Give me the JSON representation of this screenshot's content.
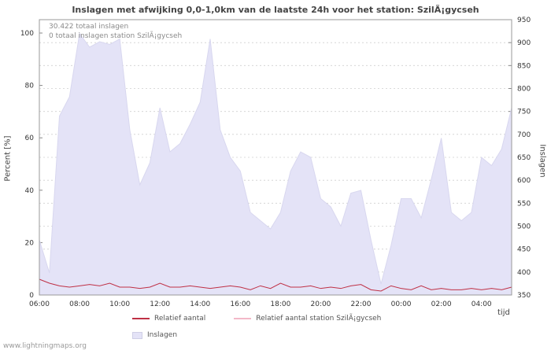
{
  "page": {
    "watermark": "www.lightningmaps.org"
  },
  "chart_data": {
    "type": "area",
    "title": "Inslagen met afwijking 0,0-1,0km van de laatste 24h voor het station: SzilÃ¡gycseh",
    "annotations": [
      "30.422 totaal inslagen",
      "0 totaal inslagen station SzilÃ¡gycseh"
    ],
    "xlabel": "tijd",
    "grid": true,
    "left_axis": {
      "label": "Percent   [%]",
      "min": 0,
      "max": 100,
      "ticks": [
        0,
        20,
        40,
        60,
        80,
        100
      ]
    },
    "right_axis": {
      "label": "Inslagen",
      "min": 350,
      "max": 950,
      "tick_step": 50
    },
    "x": [
      "06:00",
      "06:30",
      "07:00",
      "07:30",
      "08:00",
      "08:30",
      "09:00",
      "09:30",
      "10:00",
      "10:30",
      "11:00",
      "11:30",
      "12:00",
      "12:30",
      "13:00",
      "13:30",
      "14:00",
      "14:30",
      "15:00",
      "15:30",
      "16:00",
      "16:30",
      "17:00",
      "17:30",
      "18:00",
      "18:30",
      "19:00",
      "19:30",
      "20:00",
      "20:30",
      "21:00",
      "21:30",
      "22:00",
      "22:30",
      "23:00",
      "23:30",
      "00:00",
      "00:30",
      "01:00",
      "01:30",
      "02:00",
      "02:30",
      "03:00",
      "03:30",
      "04:00",
      "04:30",
      "05:00",
      "05:30"
    ],
    "major_tick_every": 4,
    "series": [
      {
        "name": "Inslagen",
        "type": "area",
        "axis": "right",
        "color": "#e4e3f7",
        "values": [
          470,
          398,
          740,
          782,
          920,
          890,
          902,
          896,
          908,
          710,
          590,
          638,
          758,
          662,
          680,
          722,
          770,
          908,
          710,
          650,
          620,
          530,
          512,
          494,
          530,
          620,
          662,
          650,
          560,
          542,
          500,
          572,
          578,
          470,
          374,
          458,
          560,
          560,
          518,
          602,
          692,
          530,
          512,
          530,
          650,
          632,
          668,
          758
        ]
      },
      {
        "name": "Relatief aantal",
        "type": "line",
        "axis": "left",
        "color": "#bf3045",
        "values": [
          6,
          4.5,
          3.5,
          3,
          3.5,
          4,
          3.5,
          4.5,
          3,
          3,
          2.5,
          3,
          4.5,
          3,
          3,
          3.5,
          3,
          2.5,
          3,
          3.5,
          3,
          2,
          3.5,
          2.5,
          4.5,
          3,
          3,
          3.5,
          2.5,
          3,
          2.5,
          3.5,
          4,
          2,
          1.5,
          3.5,
          2.5,
          2,
          3.5,
          2,
          2.5,
          2,
          2,
          2.5,
          2,
          2.5,
          2,
          3
        ]
      },
      {
        "name": "Relatief aantal station SzilÃ¡gycseh",
        "type": "line",
        "axis": "left",
        "color": "#f3b8c8",
        "values": [
          0,
          0,
          0,
          0,
          0,
          0,
          0,
          0,
          0,
          0,
          0,
          0,
          0,
          0,
          0,
          0,
          0,
          0,
          0,
          0,
          0,
          0,
          0,
          0,
          0,
          0,
          0,
          0,
          0,
          0,
          0,
          0,
          0,
          0,
          0,
          0,
          0,
          0,
          0,
          0,
          0,
          0,
          0,
          0,
          0,
          0,
          0,
          0
        ]
      }
    ],
    "legend": {
      "row1": [
        {
          "label": "Relatief aantal",
          "color": "#bf3045"
        },
        {
          "label": "Relatief aantal station SzilÃ¡gycseh",
          "color": "#f3b8c8"
        }
      ],
      "row2": [
        {
          "label": "Inslagen",
          "color": "#e4e3f7"
        }
      ]
    }
  }
}
